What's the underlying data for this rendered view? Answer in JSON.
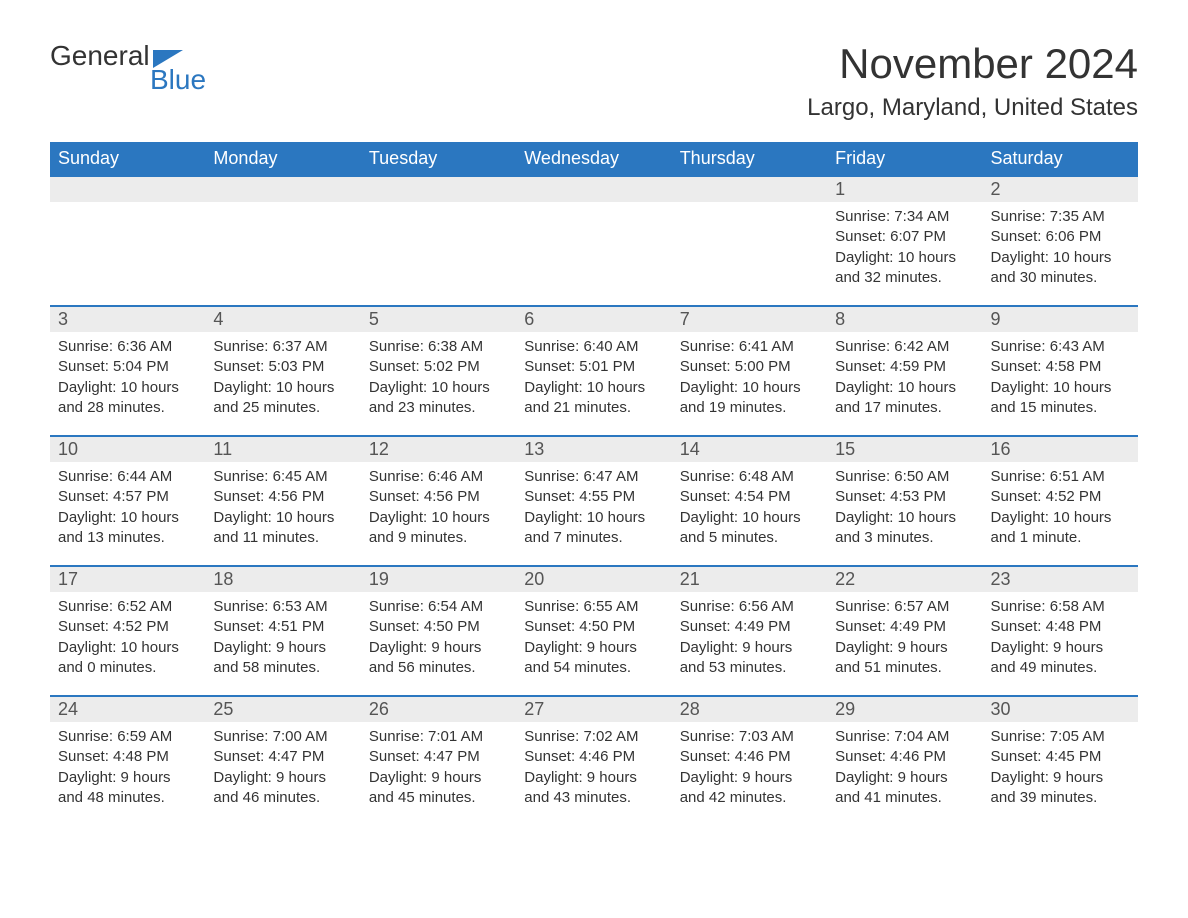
{
  "logo": {
    "text1": "General",
    "text2": "Blue"
  },
  "title": "November 2024",
  "location": "Largo, Maryland, United States",
  "colors": {
    "header_bg": "#2b77c0",
    "header_text": "#ffffff",
    "daynum_bg": "#ececec",
    "border": "#2b77c0",
    "text": "#333333",
    "logo_blue": "#2b77c0"
  },
  "day_headers": [
    "Sunday",
    "Monday",
    "Tuesday",
    "Wednesday",
    "Thursday",
    "Friday",
    "Saturday"
  ],
  "weeks": [
    [
      {
        "empty": true
      },
      {
        "empty": true
      },
      {
        "empty": true
      },
      {
        "empty": true
      },
      {
        "empty": true
      },
      {
        "n": "1",
        "sunrise": "Sunrise: 7:34 AM",
        "sunset": "Sunset: 6:07 PM",
        "daylight": "Daylight: 10 hours and 32 minutes."
      },
      {
        "n": "2",
        "sunrise": "Sunrise: 7:35 AM",
        "sunset": "Sunset: 6:06 PM",
        "daylight": "Daylight: 10 hours and 30 minutes."
      }
    ],
    [
      {
        "n": "3",
        "sunrise": "Sunrise: 6:36 AM",
        "sunset": "Sunset: 5:04 PM",
        "daylight": "Daylight: 10 hours and 28 minutes."
      },
      {
        "n": "4",
        "sunrise": "Sunrise: 6:37 AM",
        "sunset": "Sunset: 5:03 PM",
        "daylight": "Daylight: 10 hours and 25 minutes."
      },
      {
        "n": "5",
        "sunrise": "Sunrise: 6:38 AM",
        "sunset": "Sunset: 5:02 PM",
        "daylight": "Daylight: 10 hours and 23 minutes."
      },
      {
        "n": "6",
        "sunrise": "Sunrise: 6:40 AM",
        "sunset": "Sunset: 5:01 PM",
        "daylight": "Daylight: 10 hours and 21 minutes."
      },
      {
        "n": "7",
        "sunrise": "Sunrise: 6:41 AM",
        "sunset": "Sunset: 5:00 PM",
        "daylight": "Daylight: 10 hours and 19 minutes."
      },
      {
        "n": "8",
        "sunrise": "Sunrise: 6:42 AM",
        "sunset": "Sunset: 4:59 PM",
        "daylight": "Daylight: 10 hours and 17 minutes."
      },
      {
        "n": "9",
        "sunrise": "Sunrise: 6:43 AM",
        "sunset": "Sunset: 4:58 PM",
        "daylight": "Daylight: 10 hours and 15 minutes."
      }
    ],
    [
      {
        "n": "10",
        "sunrise": "Sunrise: 6:44 AM",
        "sunset": "Sunset: 4:57 PM",
        "daylight": "Daylight: 10 hours and 13 minutes."
      },
      {
        "n": "11",
        "sunrise": "Sunrise: 6:45 AM",
        "sunset": "Sunset: 4:56 PM",
        "daylight": "Daylight: 10 hours and 11 minutes."
      },
      {
        "n": "12",
        "sunrise": "Sunrise: 6:46 AM",
        "sunset": "Sunset: 4:56 PM",
        "daylight": "Daylight: 10 hours and 9 minutes."
      },
      {
        "n": "13",
        "sunrise": "Sunrise: 6:47 AM",
        "sunset": "Sunset: 4:55 PM",
        "daylight": "Daylight: 10 hours and 7 minutes."
      },
      {
        "n": "14",
        "sunrise": "Sunrise: 6:48 AM",
        "sunset": "Sunset: 4:54 PM",
        "daylight": "Daylight: 10 hours and 5 minutes."
      },
      {
        "n": "15",
        "sunrise": "Sunrise: 6:50 AM",
        "sunset": "Sunset: 4:53 PM",
        "daylight": "Daylight: 10 hours and 3 minutes."
      },
      {
        "n": "16",
        "sunrise": "Sunrise: 6:51 AM",
        "sunset": "Sunset: 4:52 PM",
        "daylight": "Daylight: 10 hours and 1 minute."
      }
    ],
    [
      {
        "n": "17",
        "sunrise": "Sunrise: 6:52 AM",
        "sunset": "Sunset: 4:52 PM",
        "daylight": "Daylight: 10 hours and 0 minutes."
      },
      {
        "n": "18",
        "sunrise": "Sunrise: 6:53 AM",
        "sunset": "Sunset: 4:51 PM",
        "daylight": "Daylight: 9 hours and 58 minutes."
      },
      {
        "n": "19",
        "sunrise": "Sunrise: 6:54 AM",
        "sunset": "Sunset: 4:50 PM",
        "daylight": "Daylight: 9 hours and 56 minutes."
      },
      {
        "n": "20",
        "sunrise": "Sunrise: 6:55 AM",
        "sunset": "Sunset: 4:50 PM",
        "daylight": "Daylight: 9 hours and 54 minutes."
      },
      {
        "n": "21",
        "sunrise": "Sunrise: 6:56 AM",
        "sunset": "Sunset: 4:49 PM",
        "daylight": "Daylight: 9 hours and 53 minutes."
      },
      {
        "n": "22",
        "sunrise": "Sunrise: 6:57 AM",
        "sunset": "Sunset: 4:49 PM",
        "daylight": "Daylight: 9 hours and 51 minutes."
      },
      {
        "n": "23",
        "sunrise": "Sunrise: 6:58 AM",
        "sunset": "Sunset: 4:48 PM",
        "daylight": "Daylight: 9 hours and 49 minutes."
      }
    ],
    [
      {
        "n": "24",
        "sunrise": "Sunrise: 6:59 AM",
        "sunset": "Sunset: 4:48 PM",
        "daylight": "Daylight: 9 hours and 48 minutes."
      },
      {
        "n": "25",
        "sunrise": "Sunrise: 7:00 AM",
        "sunset": "Sunset: 4:47 PM",
        "daylight": "Daylight: 9 hours and 46 minutes."
      },
      {
        "n": "26",
        "sunrise": "Sunrise: 7:01 AM",
        "sunset": "Sunset: 4:47 PM",
        "daylight": "Daylight: 9 hours and 45 minutes."
      },
      {
        "n": "27",
        "sunrise": "Sunrise: 7:02 AM",
        "sunset": "Sunset: 4:46 PM",
        "daylight": "Daylight: 9 hours and 43 minutes."
      },
      {
        "n": "28",
        "sunrise": "Sunrise: 7:03 AM",
        "sunset": "Sunset: 4:46 PM",
        "daylight": "Daylight: 9 hours and 42 minutes."
      },
      {
        "n": "29",
        "sunrise": "Sunrise: 7:04 AM",
        "sunset": "Sunset: 4:46 PM",
        "daylight": "Daylight: 9 hours and 41 minutes."
      },
      {
        "n": "30",
        "sunrise": "Sunrise: 7:05 AM",
        "sunset": "Sunset: 4:45 PM",
        "daylight": "Daylight: 9 hours and 39 minutes."
      }
    ]
  ]
}
